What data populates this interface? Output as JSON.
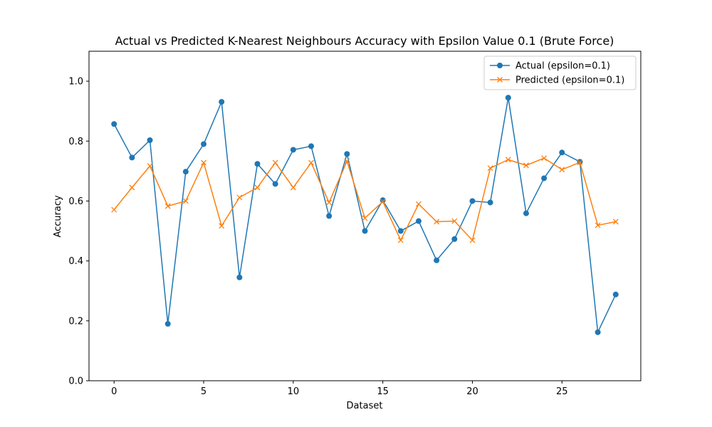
{
  "chart_data": {
    "type": "line",
    "title": "Actual vs Predicted K-Nearest Neighbours Accuracy with Epsilon Value 0.1 (Brute Force)",
    "xlabel": "Dataset",
    "ylabel": "Accuracy",
    "xlim": [
      -1.4,
      29.4
    ],
    "ylim": [
      0.0,
      1.1
    ],
    "xticks": [
      0,
      5,
      10,
      15,
      20,
      25
    ],
    "yticks": [
      0.0,
      0.2,
      0.4,
      0.6,
      0.8,
      1.0
    ],
    "xtick_labels": [
      "0",
      "5",
      "10",
      "15",
      "20",
      "25"
    ],
    "ytick_labels": [
      "0.0",
      "0.2",
      "0.4",
      "0.6",
      "0.8",
      "1.0"
    ],
    "grid": false,
    "legend_position": "top-right",
    "x": [
      0,
      1,
      2,
      3,
      4,
      5,
      6,
      7,
      8,
      9,
      10,
      11,
      12,
      13,
      14,
      15,
      16,
      17,
      18,
      19,
      20,
      21,
      22,
      23,
      24,
      25,
      26,
      27,
      28
    ],
    "series": [
      {
        "name": "Actual (epsilon=0.1)",
        "color": "#1f77b4",
        "marker": "circle",
        "values": [
          0.857,
          0.745,
          0.803,
          0.19,
          0.698,
          0.79,
          0.931,
          0.345,
          0.724,
          0.657,
          0.771,
          0.783,
          0.55,
          0.757,
          0.5,
          0.603,
          0.5,
          0.533,
          0.402,
          0.473,
          0.6,
          0.595,
          0.945,
          0.559,
          0.676,
          0.762,
          0.731,
          0.162,
          0.288
        ]
      },
      {
        "name": "Predicted (epsilon=0.1)",
        "color": "#ff7f0e",
        "marker": "x",
        "values": [
          0.571,
          0.645,
          0.717,
          0.583,
          0.6,
          0.728,
          0.517,
          0.612,
          0.645,
          0.728,
          0.645,
          0.728,
          0.595,
          0.733,
          0.543,
          0.598,
          0.469,
          0.59,
          0.531,
          0.533,
          0.469,
          0.71,
          0.738,
          0.719,
          0.743,
          0.705,
          0.729,
          0.519,
          0.531
        ]
      }
    ]
  }
}
